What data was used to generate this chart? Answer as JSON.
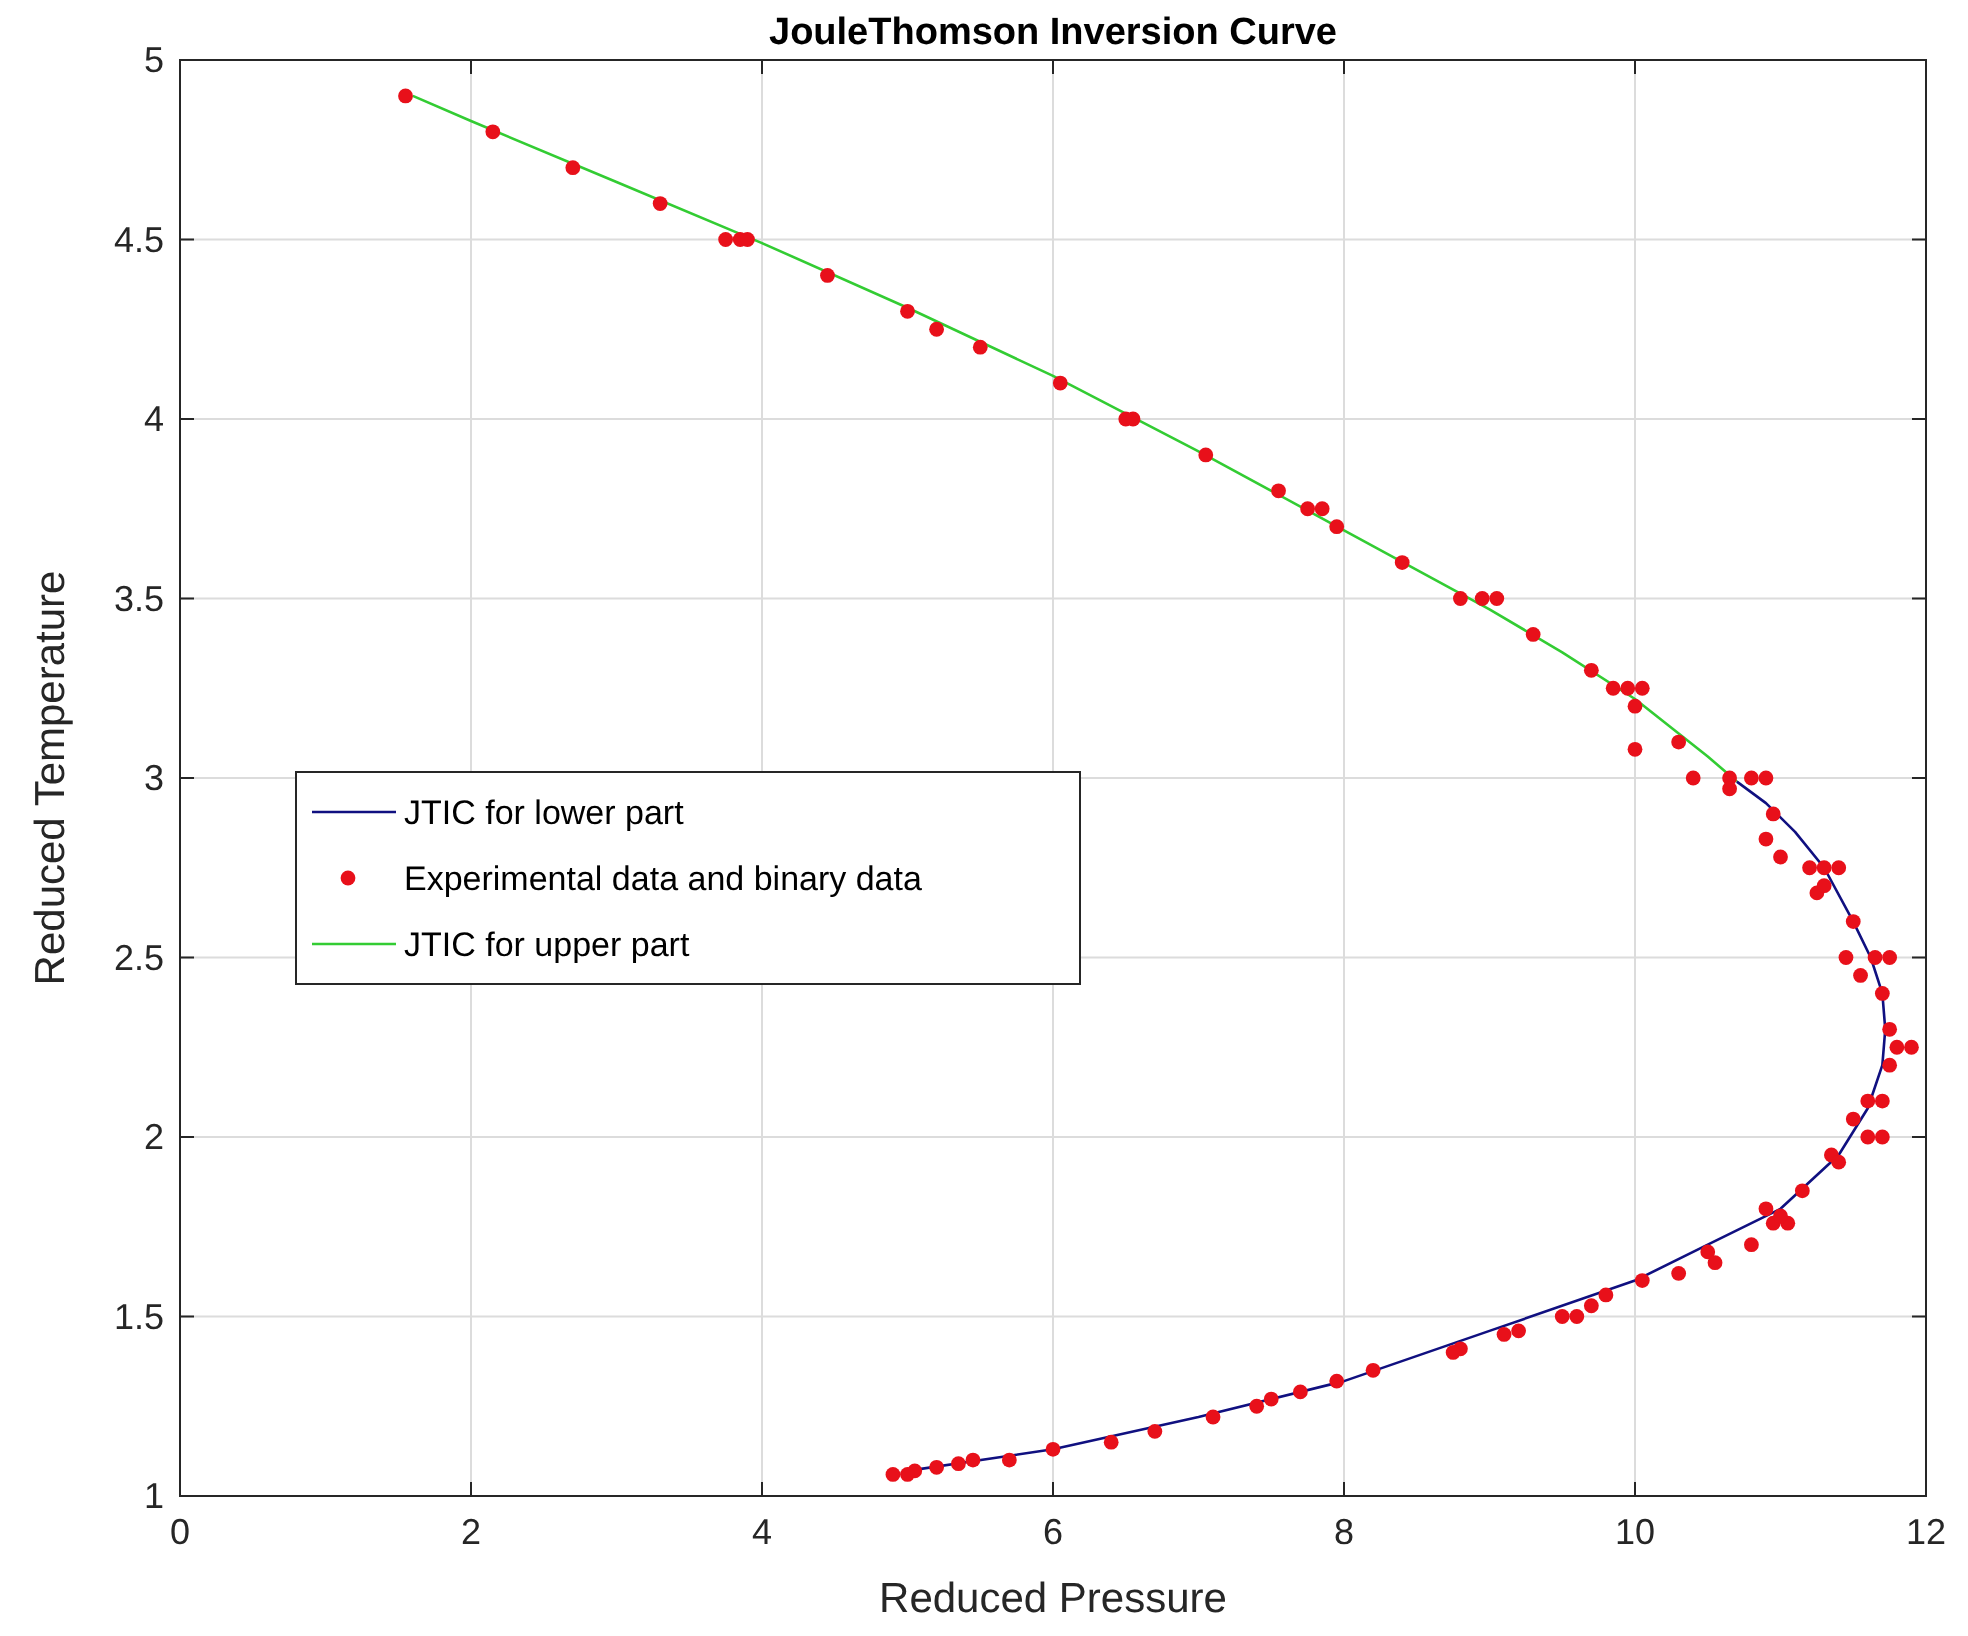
{
  "chart_data": {
    "type": "line",
    "title": "JouleThomson Inversion Curve",
    "xlabel": "Reduced Pressure",
    "ylabel": "Reduced Temperature",
    "xlim": [
      0,
      12
    ],
    "ylim": [
      1,
      5
    ],
    "xticks": [
      0,
      2,
      4,
      6,
      8,
      10,
      12
    ],
    "yticks": [
      1,
      1.5,
      2,
      2.5,
      3,
      3.5,
      4,
      4.5,
      5
    ],
    "grid": true,
    "legend": "left",
    "series": [
      {
        "name": "JTIC for lower part",
        "color": "#101080",
        "marker": "none",
        "x": [
          5.0,
          6,
          7,
          8,
          9,
          10,
          10.5,
          11,
          11.4,
          11.6,
          11.7,
          11.72,
          11.7,
          11.62,
          11.5,
          11.3,
          11.1,
          10.9,
          10.7
        ],
        "values": [
          1.07,
          1.13,
          1.22,
          1.32,
          1.46,
          1.6,
          1.7,
          1.8,
          1.95,
          2.08,
          2.2,
          2.3,
          2.4,
          2.5,
          2.6,
          2.75,
          2.85,
          2.93,
          2.99
        ]
      },
      {
        "name": "Experimental data and binary data",
        "type": "scatter",
        "color": "#e8101a",
        "marker": "circle",
        "x": [
          1.55,
          2.15,
          2.7,
          3.3,
          3.75,
          3.85,
          3.9,
          4.45,
          5.0,
          5.2,
          5.5,
          6.05,
          6.5,
          6.55,
          7.05,
          7.55,
          7.75,
          7.85,
          7.95,
          8.4,
          8.8,
          8.95,
          9.05,
          9.3,
          9.7,
          9.85,
          9.95,
          10.05,
          10.0,
          10.0,
          10.3,
          10.4,
          10.65,
          10.8,
          10.9,
          10.65,
          10.95,
          10.9,
          11.0,
          11.2,
          11.3,
          11.4,
          11.25,
          11.3,
          11.5,
          11.45,
          11.65,
          11.75,
          11.7,
          11.55,
          11.75,
          11.8,
          11.9,
          11.75,
          11.6,
          11.7,
          11.5,
          11.6,
          11.7,
          11.35,
          11.4,
          11.15,
          10.9,
          10.95,
          11.05,
          11.0,
          10.8,
          10.5,
          10.55,
          10.3,
          10.05,
          9.8,
          9.7,
          9.6,
          9.5,
          9.2,
          9.1,
          8.8,
          8.75,
          8.2,
          7.95,
          7.7,
          7.5,
          7.4,
          7.1,
          6.7,
          6.4,
          6.0,
          5.7,
          5.45,
          5.35,
          5.2,
          5.05,
          4.9,
          5.0
        ],
        "values": [
          4.9,
          4.8,
          4.7,
          4.6,
          4.5,
          4.5,
          4.5,
          4.4,
          4.3,
          4.25,
          4.2,
          4.1,
          4.0,
          4.0,
          3.9,
          3.8,
          3.75,
          3.75,
          3.7,
          3.6,
          3.5,
          3.5,
          3.5,
          3.4,
          3.3,
          3.25,
          3.25,
          3.25,
          3.2,
          3.08,
          3.1,
          3.0,
          3.0,
          3.0,
          3.0,
          2.97,
          2.9,
          2.83,
          2.78,
          2.75,
          2.75,
          2.75,
          2.68,
          2.7,
          2.6,
          2.5,
          2.5,
          2.5,
          2.4,
          2.45,
          2.3,
          2.25,
          2.25,
          2.2,
          2.1,
          2.1,
          2.05,
          2.0,
          2.0,
          1.95,
          1.93,
          1.85,
          1.8,
          1.76,
          1.76,
          1.78,
          1.7,
          1.68,
          1.65,
          1.62,
          1.6,
          1.56,
          1.53,
          1.5,
          1.5,
          1.46,
          1.45,
          1.41,
          1.4,
          1.35,
          1.32,
          1.29,
          1.27,
          1.25,
          1.22,
          1.18,
          1.15,
          1.13,
          1.1,
          1.1,
          1.09,
          1.08,
          1.07,
          1.06,
          1.06
        ]
      },
      {
        "name": "JTIC for upper part",
        "color": "#33cc33",
        "marker": "none",
        "x": [
          1.6,
          2,
          3,
          4,
          5,
          6,
          7,
          8,
          9,
          9.5,
          10,
          10.5,
          10.7
        ],
        "values": [
          4.9,
          4.83,
          4.66,
          4.49,
          4.31,
          4.12,
          3.91,
          3.69,
          3.47,
          3.35,
          3.22,
          3.06,
          2.99
        ]
      }
    ]
  }
}
